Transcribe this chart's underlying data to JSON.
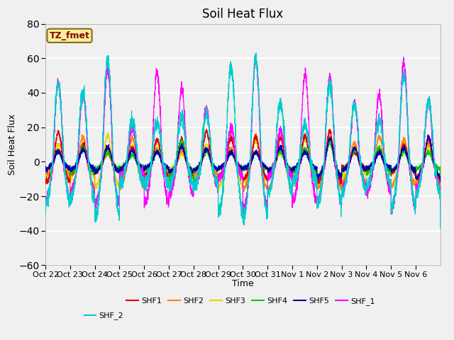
{
  "title": "Soil Heat Flux",
  "xlabel": "Time",
  "ylabel": "Soil Heat Flux",
  "ylim": [
    -60,
    80
  ],
  "yticks": [
    -60,
    -40,
    -20,
    0,
    20,
    40,
    60,
    80
  ],
  "annotation": "TZ_fmet",
  "fig_bg_color": "#f0f0f0",
  "plot_bg_color": "#f0f0f0",
  "line_colors": {
    "SHF1": "#dd0000",
    "SHF2": "#ff8800",
    "SHF3": "#dddd00",
    "SHF4": "#00cc00",
    "SHF5": "#0000aa",
    "SHF_1": "#ff00ff",
    "SHF_2": "#00cccc"
  },
  "date_labels": [
    "Oct 22",
    "Oct 23",
    "Oct 24",
    "Oct 25",
    "Oct 26",
    "Oct 27",
    "Oct 28",
    "Oct 29",
    "Oct 30",
    "Oct 31",
    "Nov 1",
    "Nov 2",
    "Nov 3",
    "Nov 4",
    "Nov 5",
    "Nov 6"
  ],
  "title_fontsize": 12,
  "axis_label_fontsize": 9,
  "tick_fontsize": 8,
  "num_points": 3840
}
